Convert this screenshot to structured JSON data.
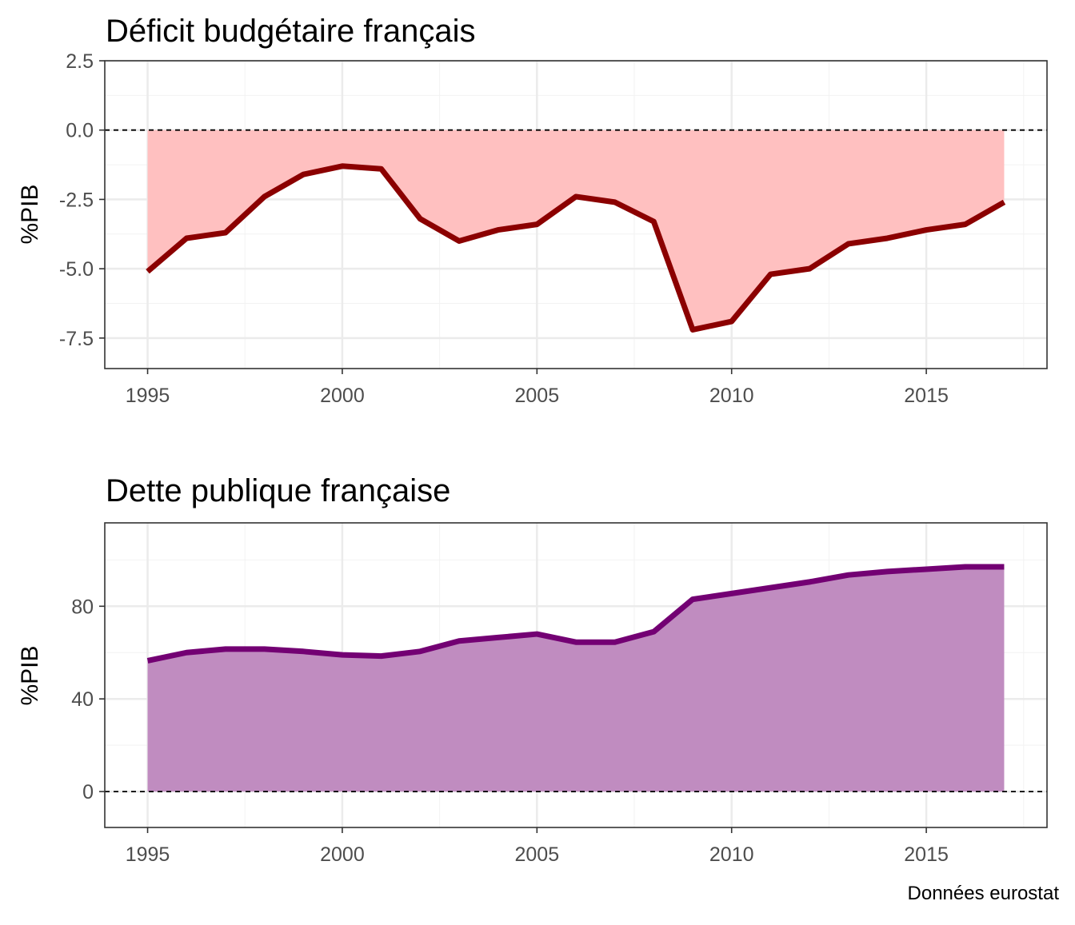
{
  "caption": "Données eurostat",
  "chart_data": [
    {
      "type": "area",
      "title": "Déficit budgétaire français",
      "xlabel": "",
      "ylabel": "%PIB",
      "x": [
        1995,
        1996,
        1997,
        1998,
        1999,
        2000,
        2001,
        2002,
        2003,
        2004,
        2005,
        2006,
        2007,
        2008,
        2009,
        2010,
        2011,
        2012,
        2013,
        2014,
        2015,
        2016,
        2017
      ],
      "series": [
        {
          "values": [
            -5.1,
            -3.9,
            -3.7,
            -2.4,
            -1.6,
            -1.3,
            -1.4,
            -3.2,
            -4.0,
            -3.6,
            -3.4,
            -2.4,
            -2.6,
            -3.3,
            -7.2,
            -6.9,
            -5.2,
            -5.0,
            -4.1,
            -3.9,
            -3.6,
            -3.4,
            -2.6
          ],
          "line_color": "#8B0000",
          "fill_color": "#FFC0C0"
        }
      ],
      "baseline": 0,
      "xlim": [
        1993.9,
        2018.1
      ],
      "ylim": [
        -8.6,
        2.5
      ],
      "xticks": [
        1995,
        2000,
        2005,
        2010,
        2015
      ],
      "xtick_labels": [
        "1995",
        "2000",
        "2005",
        "2010",
        "2015"
      ],
      "yticks": [
        2.5,
        0,
        -2.5,
        -5,
        -7.5
      ],
      "ytick_labels": [
        "2.5",
        "0.0",
        "-2.5",
        "-5.0",
        "-7.5"
      ],
      "grid": true
    },
    {
      "type": "area",
      "title": "Dette publique française",
      "xlabel": "",
      "ylabel": "%PIB",
      "x": [
        1995,
        1996,
        1997,
        1998,
        1999,
        2000,
        2001,
        2002,
        2003,
        2004,
        2005,
        2006,
        2007,
        2008,
        2009,
        2010,
        2011,
        2012,
        2013,
        2014,
        2015,
        2016,
        2017
      ],
      "series": [
        {
          "values": [
            56.5,
            60.0,
            61.5,
            61.5,
            60.5,
            59.0,
            58.5,
            60.5,
            65.0,
            66.5,
            68.0,
            64.5,
            64.5,
            69.0,
            83.0,
            85.5,
            88.0,
            90.5,
            93.5,
            95.0,
            96.0,
            97.0,
            97.0
          ],
          "line_color": "#730073",
          "fill_color": "#C08CC0"
        }
      ],
      "baseline": 0,
      "xlim": [
        1993.9,
        2018.1
      ],
      "ylim": [
        -15.5,
        116
      ],
      "xticks": [
        1995,
        2000,
        2005,
        2010,
        2015
      ],
      "xtick_labels": [
        "1995",
        "2000",
        "2005",
        "2010",
        "2015"
      ],
      "yticks": [
        80,
        40,
        0
      ],
      "ytick_labels": [
        "80",
        "40",
        "0"
      ],
      "grid": true
    }
  ]
}
